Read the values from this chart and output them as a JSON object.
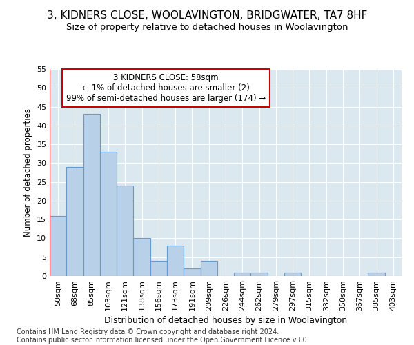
{
  "title": "3, KIDNERS CLOSE, WOOLAVINGTON, BRIDGWATER, TA7 8HF",
  "subtitle": "Size of property relative to detached houses in Woolavington",
  "xlabel": "Distribution of detached houses by size in Woolavington",
  "ylabel": "Number of detached properties",
  "categories": [
    "50sqm",
    "68sqm",
    "85sqm",
    "103sqm",
    "121sqm",
    "138sqm",
    "156sqm",
    "173sqm",
    "191sqm",
    "209sqm",
    "226sqm",
    "244sqm",
    "262sqm",
    "279sqm",
    "297sqm",
    "315sqm",
    "332sqm",
    "350sqm",
    "367sqm",
    "385sqm",
    "403sqm"
  ],
  "values": [
    16,
    29,
    43,
    33,
    24,
    10,
    4,
    8,
    2,
    4,
    0,
    1,
    1,
    0,
    1,
    0,
    0,
    0,
    0,
    1,
    0
  ],
  "bar_color": "#b8d0e8",
  "bar_edge_color": "#6699cc",
  "annotation_line1": "3 KIDNERS CLOSE: 58sqm",
  "annotation_line2": "← 1% of detached houses are smaller (2)",
  "annotation_line3": "99% of semi-detached houses are larger (174) →",
  "annotation_box_facecolor": "#ffffff",
  "annotation_box_edgecolor": "#cc0000",
  "vline_color": "#cc0000",
  "ylim": [
    0,
    55
  ],
  "yticks": [
    0,
    5,
    10,
    15,
    20,
    25,
    30,
    35,
    40,
    45,
    50,
    55
  ],
  "fig_background_color": "#ffffff",
  "plot_background_color": "#dce8f0",
  "grid_color": "#ffffff",
  "title_fontsize": 11,
  "subtitle_fontsize": 9.5,
  "xlabel_fontsize": 9,
  "ylabel_fontsize": 8.5,
  "tick_fontsize": 8,
  "annotation_fontsize": 8.5,
  "footer_fontsize": 7,
  "footer": "Contains HM Land Registry data © Crown copyright and database right 2024.\nContains public sector information licensed under the Open Government Licence v3.0."
}
